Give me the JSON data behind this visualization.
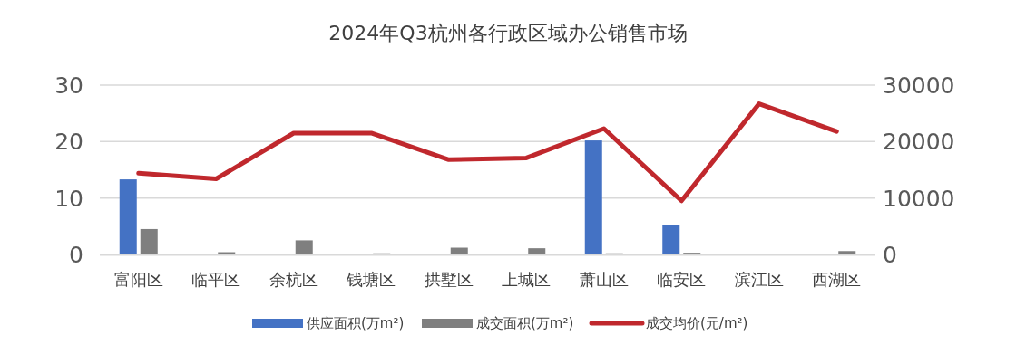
{
  "chart_data": {
    "type": "bar",
    "title": "2024年Q3杭州各行政区域办公销售市场",
    "categories": [
      "富阳区",
      "临平区",
      "余杭区",
      "钱塘区",
      "拱墅区",
      "上城区",
      "萧山区",
      "临安区",
      "滨江区",
      "西湖区"
    ],
    "series": [
      {
        "name": "供应面积(万m²)",
        "color": "#4472c4",
        "values": [
          13.3,
          null,
          null,
          null,
          null,
          null,
          20.2,
          5.2,
          null,
          null
        ]
      },
      {
        "name": "成交面积(万m²)",
        "color": "#7f7f7f",
        "values": [
          4.5,
          0.4,
          2.5,
          0.2,
          1.2,
          1.1,
          0.2,
          0.3,
          null,
          0.6
        ]
      },
      {
        "name": "成交均价(元/m²)",
        "type": "line",
        "axis": "y2",
        "color": "#c0282d",
        "values": [
          14400,
          13400,
          21500,
          21500,
          16800,
          17100,
          22300,
          9500,
          26700,
          21800
        ]
      }
    ],
    "ylim": [
      0,
      30
    ],
    "yticks": [
      0,
      10,
      20,
      30
    ],
    "y2lim": [
      0,
      30000
    ],
    "y2ticks": [
      0,
      10000,
      20000,
      30000
    ],
    "grid": "y",
    "legend": "bottom"
  }
}
